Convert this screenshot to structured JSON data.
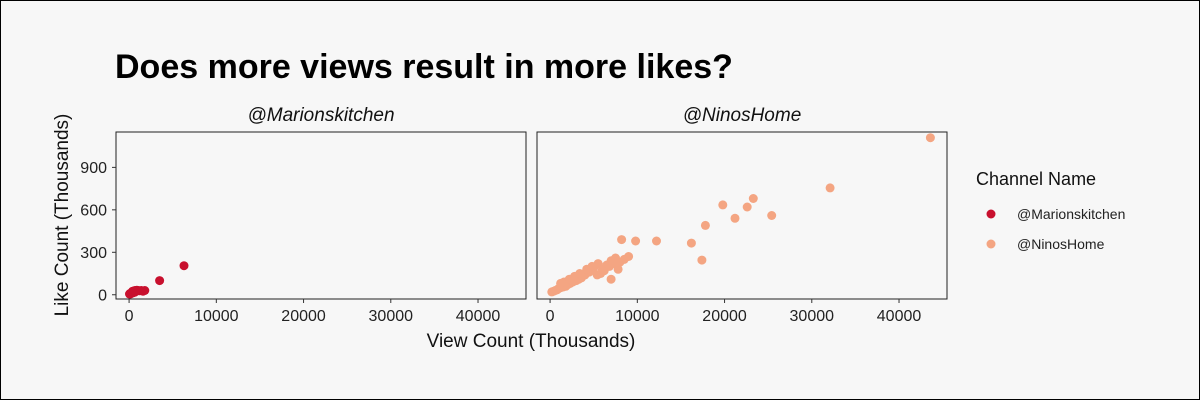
{
  "chart_data": {
    "type": "scatter",
    "title": "Does more views result in more likes?",
    "xlabel": "View Count (Thousands)",
    "ylabel": "Like Count (Thousands)",
    "xlim": [
      -1500,
      45500
    ],
    "ylim": [
      -30,
      1150
    ],
    "x_ticks": [
      "0",
      "10000",
      "20000",
      "30000",
      "40000"
    ],
    "y_ticks": [
      "0",
      "300",
      "600",
      "900"
    ],
    "grid": false,
    "legend": {
      "title": "Channel Name",
      "position": "right"
    },
    "facets": [
      "@Marionskitchen",
      "@NinosHome"
    ],
    "series": [
      {
        "name": "@Marionskitchen",
        "color": "#c8102e",
        "facet": 0,
        "points": [
          [
            50,
            5
          ],
          [
            120,
            8
          ],
          [
            200,
            12
          ],
          [
            300,
            15
          ],
          [
            400,
            25
          ],
          [
            500,
            20
          ],
          [
            600,
            28
          ],
          [
            700,
            30
          ],
          [
            800,
            25
          ],
          [
            900,
            32
          ],
          [
            1000,
            30
          ],
          [
            1200,
            28
          ],
          [
            1400,
            30
          ],
          [
            1600,
            25
          ],
          [
            1800,
            30
          ],
          [
            250,
            10
          ],
          [
            350,
            18
          ],
          [
            450,
            14
          ],
          [
            150,
            6
          ],
          [
            550,
            22
          ],
          [
            650,
            18
          ],
          [
            750,
            24
          ],
          [
            3500,
            100
          ],
          [
            6300,
            205
          ]
        ]
      },
      {
        "name": "@NinosHome",
        "color": "#f4a582",
        "facet": 1,
        "points": [
          [
            200,
            20
          ],
          [
            400,
            25
          ],
          [
            600,
            30
          ],
          [
            800,
            35
          ],
          [
            1000,
            45
          ],
          [
            1200,
            50
          ],
          [
            1500,
            55
          ],
          [
            1800,
            60
          ],
          [
            2000,
            70
          ],
          [
            2300,
            80
          ],
          [
            2600,
            90
          ],
          [
            3000,
            100
          ],
          [
            3300,
            110
          ],
          [
            3600,
            120
          ],
          [
            4000,
            140
          ],
          [
            4500,
            160
          ],
          [
            5000,
            190
          ],
          [
            5500,
            220
          ],
          [
            6000,
            180
          ],
          [
            6500,
            210
          ],
          [
            7000,
            240
          ],
          [
            7500,
            260
          ],
          [
            8000,
            230
          ],
          [
            8500,
            250
          ],
          [
            9000,
            270
          ],
          [
            1200,
            80
          ],
          [
            1600,
            90
          ],
          [
            2200,
            110
          ],
          [
            2800,
            130
          ],
          [
            3400,
            150
          ],
          [
            4200,
            180
          ],
          [
            4800,
            200
          ],
          [
            5400,
            140
          ],
          [
            5800,
            150
          ],
          [
            6200,
            170
          ],
          [
            6800,
            200
          ],
          [
            7200,
            220
          ],
          [
            7800,
            180
          ],
          [
            8200,
            390
          ],
          [
            9800,
            380
          ],
          [
            12200,
            380
          ],
          [
            7000,
            110
          ],
          [
            16200,
            365
          ],
          [
            17400,
            245
          ],
          [
            17800,
            490
          ],
          [
            19800,
            635
          ],
          [
            21200,
            540
          ],
          [
            22600,
            620
          ],
          [
            23300,
            680
          ],
          [
            25400,
            560
          ],
          [
            32100,
            755
          ],
          [
            43600,
            1110
          ]
        ]
      }
    ]
  }
}
